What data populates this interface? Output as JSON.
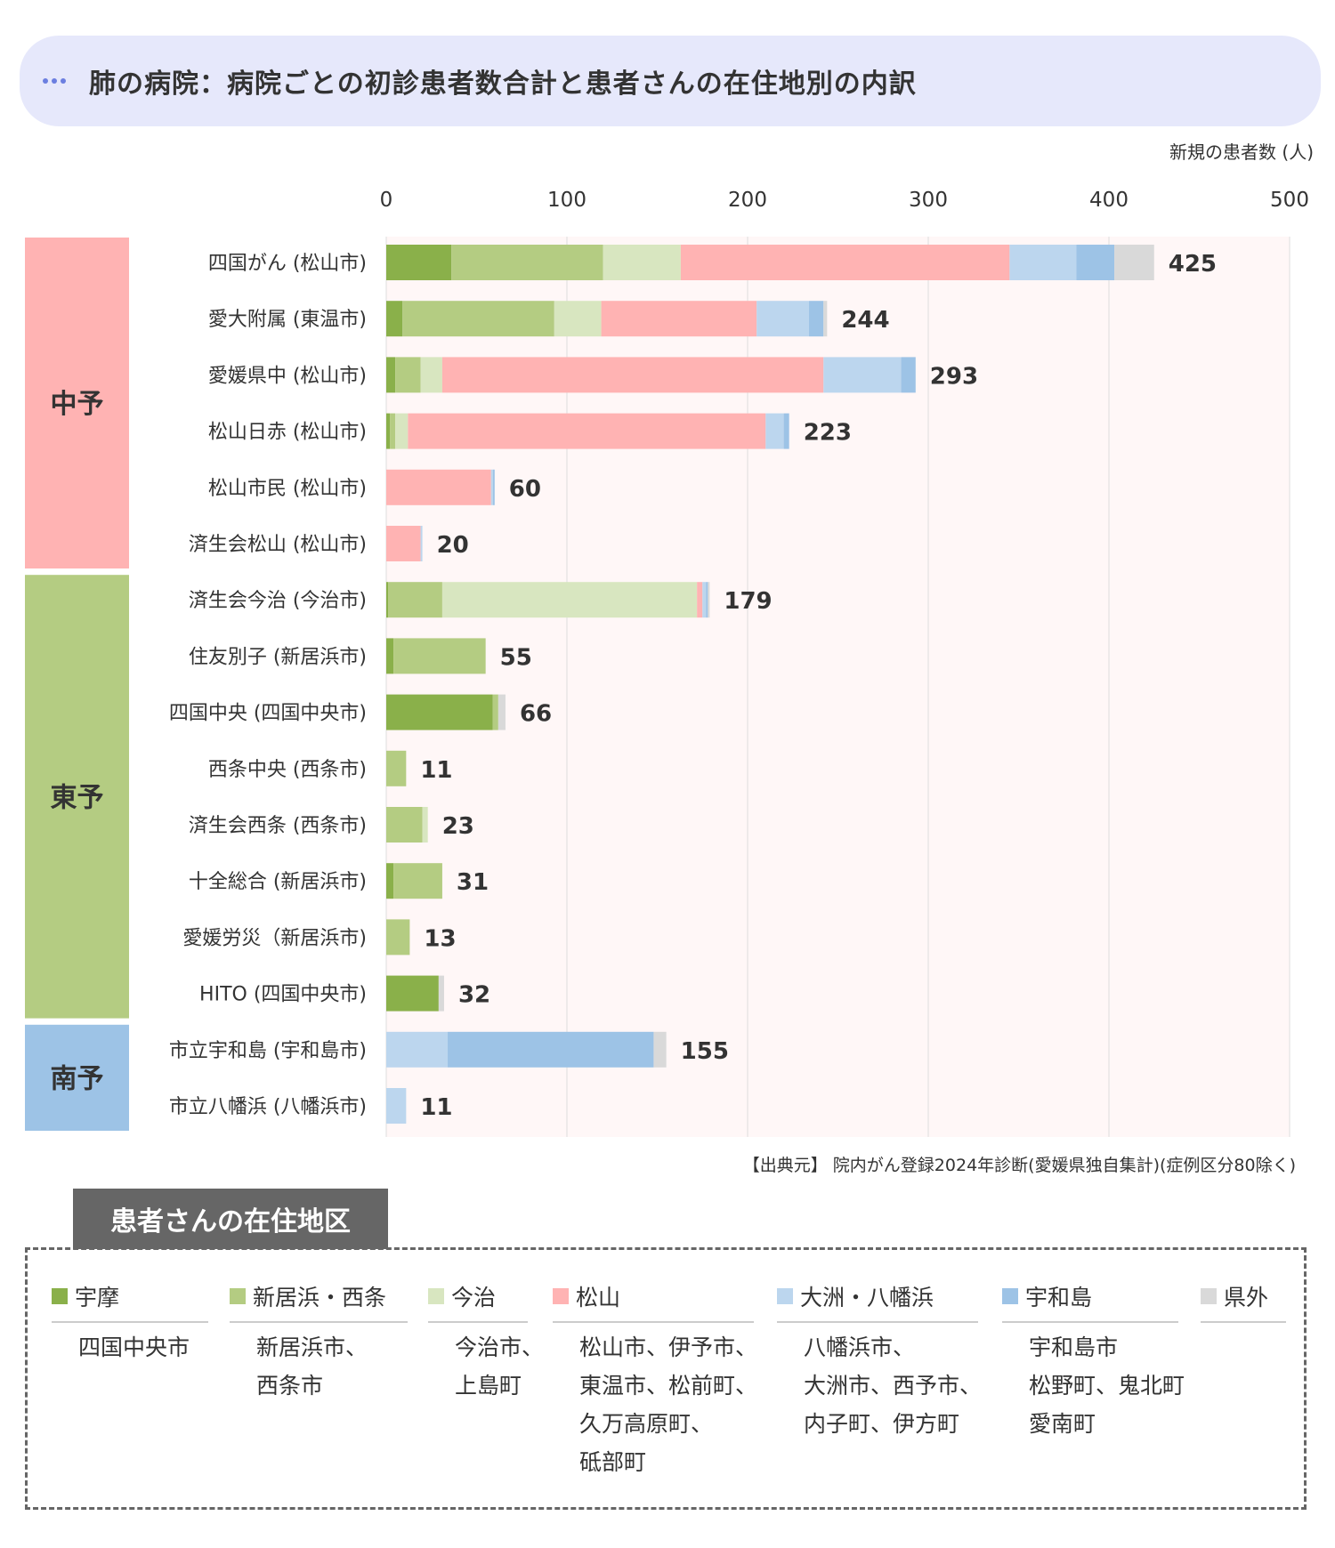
{
  "header": {
    "title": "肺の病院：病院ごとの初診患者数合計と患者さんの在住地別の内訳"
  },
  "chart_data": {
    "type": "bar",
    "orientation": "horizontal",
    "stacked": true,
    "xlabel": "新規の患者数 (人)",
    "xlim": [
      0,
      500
    ],
    "xticks": [
      0,
      100,
      200,
      300,
      400,
      500
    ],
    "source": "【出典元】 院内がん登録2024年診断(愛媛県独自集計)(症例区分80除く)",
    "colors": [
      "#8ab04a",
      "#b4cc82",
      "#d8e6c0",
      "#ffb3b3",
      "#bcd6ee",
      "#9dc3e6",
      "#d9d9d9"
    ],
    "series_names": [
      "宇摩",
      "新居浜・西条",
      "今治",
      "松山",
      "大洲・八幡浜",
      "宇和島",
      "県外"
    ],
    "groups": [
      {
        "name": "中予",
        "color": "#ffb3b3",
        "start": 0,
        "end": 5
      },
      {
        "name": "東予",
        "color": "#b4cc82",
        "start": 6,
        "end": 13
      },
      {
        "name": "南予",
        "color": "#9dc3e6",
        "start": 14,
        "end": 15
      }
    ],
    "hospitals": [
      {
        "label": "四国がん (松山市)",
        "total": "425",
        "values": [
          36,
          84,
          43,
          182,
          37,
          21,
          22
        ]
      },
      {
        "label": "愛大附属 (東温市)",
        "total": "244",
        "values": [
          9,
          84,
          26,
          86,
          29,
          8,
          2
        ]
      },
      {
        "label": "愛媛県中 (松山市)",
        "total": "293",
        "values": [
          5,
          14,
          12,
          211,
          43,
          8,
          0
        ]
      },
      {
        "label": "松山日赤 (松山市)",
        "total": "223",
        "values": [
          2,
          3,
          7,
          198,
          10,
          3,
          0
        ]
      },
      {
        "label": "松山市民 (松山市)",
        "total": "60",
        "values": [
          0,
          0,
          0,
          58,
          1,
          1,
          0
        ]
      },
      {
        "label": "済生会松山 (松山市)",
        "total": "20",
        "values": [
          0,
          0,
          0,
          19,
          1,
          0,
          0
        ]
      },
      {
        "label": "済生会今治 (今治市)",
        "total": "179",
        "values": [
          1,
          30,
          141,
          3,
          2,
          1,
          1
        ]
      },
      {
        "label": "住友別子 (新居浜市)",
        "total": "55",
        "values": [
          4,
          51,
          0,
          0,
          0,
          0,
          0
        ]
      },
      {
        "label": "四国中央 (四国中央市)",
        "total": "66",
        "values": [
          59,
          3,
          0,
          0,
          0,
          0,
          4
        ]
      },
      {
        "label": "西条中央 (西条市)",
        "total": "11",
        "values": [
          0,
          11,
          0,
          0,
          0,
          0,
          0
        ]
      },
      {
        "label": "済生会西条 (西条市)",
        "total": "23",
        "values": [
          0,
          20,
          3,
          0,
          0,
          0,
          0
        ]
      },
      {
        "label": "十全総合 (新居浜市)",
        "total": "31",
        "values": [
          4,
          27,
          0,
          0,
          0,
          0,
          0
        ]
      },
      {
        "label": "愛媛労災（新居浜市)",
        "total": "13",
        "values": [
          0,
          13,
          0,
          0,
          0,
          0,
          0
        ]
      },
      {
        "label": "HITO (四国中央市)",
        "total": "32",
        "values": [
          29,
          0,
          0,
          0,
          0,
          0,
          3
        ]
      },
      {
        "label": "市立宇和島 (宇和島市)",
        "total": "155",
        "values": [
          0,
          0,
          0,
          0,
          34,
          114,
          7
        ]
      },
      {
        "label": "市立八幡浜 (八幡浜市)",
        "total": "11",
        "values": [
          0,
          0,
          0,
          0,
          11,
          0,
          0
        ]
      }
    ]
  },
  "legend": {
    "title": "患者さんの在住地区",
    "items": [
      {
        "name": "宇摩",
        "color": "#8ab04a",
        "areas": [
          "四国中央市"
        ]
      },
      {
        "name": "新居浜・西条",
        "color": "#b4cc82",
        "areas": [
          "新居浜市、",
          "西条市"
        ]
      },
      {
        "name": "今治",
        "color": "#d8e6c0",
        "areas": [
          "今治市、",
          "上島町"
        ]
      },
      {
        "name": "松山",
        "color": "#ffb3b3",
        "areas": [
          "松山市、伊予市、",
          "東温市、松前町、",
          "久万高原町、",
          "砥部町"
        ]
      },
      {
        "name": "大洲・八幡浜",
        "color": "#bcd6ee",
        "areas": [
          "八幡浜市、",
          "大洲市、西予市、",
          "内子町、伊方町"
        ]
      },
      {
        "name": "宇和島",
        "color": "#9dc3e6",
        "areas": [
          "宇和島市",
          "松野町、鬼北町",
          "愛南町"
        ]
      },
      {
        "name": "県外",
        "color": "#d9d9d9",
        "areas": []
      }
    ]
  }
}
